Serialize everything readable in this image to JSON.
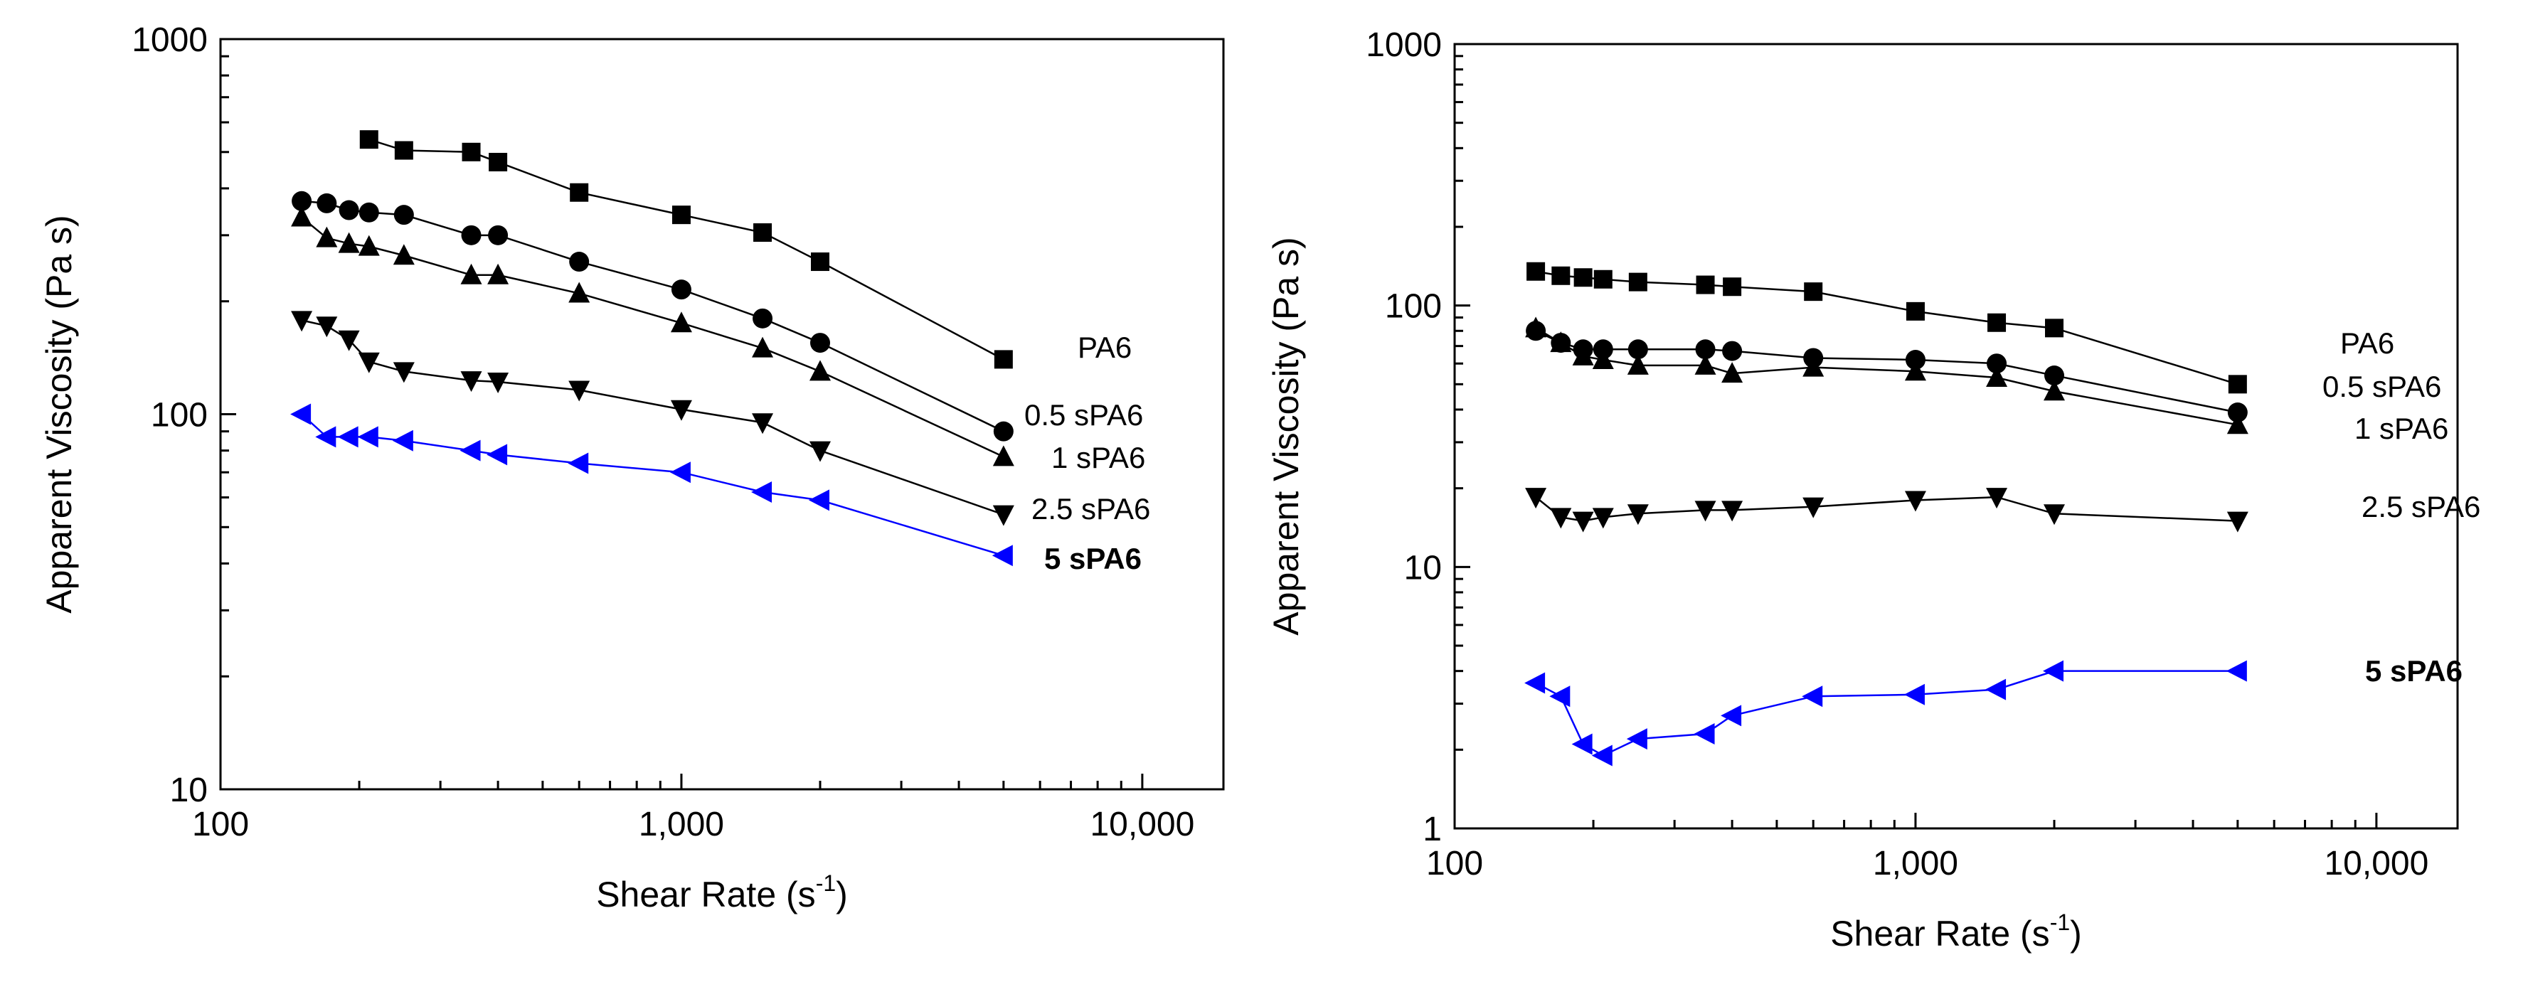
{
  "chart_data": [
    {
      "type": "line",
      "xscale": "log",
      "yscale": "log",
      "xlabel": "Shear Rate (s",
      "xlabel_sup": "-1",
      "xlabel_close": ")",
      "ylabel": "Apparent Viscosity (Pa s)",
      "xlim": [
        100,
        15000
      ],
      "ylim": [
        10,
        1000
      ],
      "x_ticks": [
        100,
        1000,
        10000
      ],
      "x_tick_labels": [
        "100",
        "1,000",
        "10,000"
      ],
      "y_ticks": [
        10,
        100,
        1000
      ],
      "y_tick_labels": [
        "10",
        "100",
        "1000"
      ],
      "series": [
        {
          "name": "PA6",
          "marker": "square",
          "color": "#000000",
          "x": [
            210,
            250,
            350,
            400,
            600,
            1000,
            1500,
            2000,
            5000
          ],
          "y": [
            540,
            505,
            500,
            470,
            390,
            340,
            305,
            255,
            140
          ]
        },
        {
          "name": "0.5 sPA6",
          "marker": "circle",
          "color": "#000000",
          "x": [
            150,
            170,
            190,
            210,
            250,
            350,
            400,
            600,
            1000,
            1500,
            2000,
            5000
          ],
          "y": [
            370,
            365,
            350,
            345,
            340,
            300,
            300,
            255,
            215,
            180,
            155,
            90
          ]
        },
        {
          "name": "1 sPA6",
          "marker": "triangle-up",
          "color": "#000000",
          "x": [
            150,
            170,
            190,
            210,
            250,
            350,
            400,
            600,
            1000,
            1500,
            2000,
            5000
          ],
          "y": [
            335,
            295,
            285,
            280,
            265,
            235,
            235,
            210,
            175,
            150,
            130,
            77
          ]
        },
        {
          "name": "2.5 sPA6",
          "marker": "triangle-down",
          "color": "#000000",
          "x": [
            150,
            170,
            190,
            210,
            250,
            350,
            400,
            600,
            1000,
            1500,
            2000,
            5000
          ],
          "y": [
            178,
            172,
            158,
            138,
            130,
            123,
            122,
            116,
            103,
            95,
            80,
            54
          ]
        },
        {
          "name": "5 sPA6",
          "marker": "triangle-left",
          "color": "#0000ff",
          "x": [
            150,
            170,
            190,
            210,
            250,
            350,
            400,
            600,
            1000,
            1500,
            2000,
            5000
          ],
          "y": [
            100,
            87,
            87,
            87,
            85,
            80,
            78,
            74,
            70,
            62,
            59,
            42
          ]
        }
      ]
    },
    {
      "type": "line",
      "xscale": "log",
      "yscale": "log",
      "xlabel": "Shear Rate (s",
      "xlabel_sup": "-1",
      "xlabel_close": ")",
      "ylabel": "Apparent Viscosity (Pa s)",
      "xlim": [
        100,
        15000
      ],
      "ylim": [
        1,
        1000
      ],
      "x_ticks": [
        100,
        1000,
        10000
      ],
      "x_tick_labels": [
        "100",
        "1,000",
        "10,000"
      ],
      "y_ticks": [
        1,
        10,
        100,
        1000
      ],
      "y_tick_labels": [
        "1",
        "10",
        "100",
        "1000"
      ],
      "series": [
        {
          "name": "PA6",
          "marker": "square",
          "color": "#000000",
          "x": [
            150,
            170,
            190,
            210,
            250,
            350,
            400,
            600,
            1000,
            1500,
            2000,
            5000
          ],
          "y": [
            135,
            130,
            128,
            126,
            123,
            120,
            118,
            113,
            95,
            86,
            82,
            50
          ]
        },
        {
          "name": "0.5 sPA6",
          "marker": "circle",
          "color": "#000000",
          "x": [
            150,
            170,
            190,
            210,
            250,
            350,
            400,
            600,
            1000,
            1500,
            2000,
            5000
          ],
          "y": [
            80,
            72,
            68,
            68,
            68,
            68,
            67,
            63,
            62,
            60,
            54,
            39
          ]
        },
        {
          "name": "1 sPA6",
          "marker": "triangle-up",
          "color": "#000000",
          "x": [
            150,
            170,
            190,
            210,
            250,
            350,
            400,
            600,
            1000,
            1500,
            2000,
            5000
          ],
          "y": [
            82,
            72,
            64,
            62,
            59,
            59,
            55,
            58,
            56,
            53,
            47,
            35
          ]
        },
        {
          "name": "2.5 sPA6",
          "marker": "triangle-down",
          "color": "#000000",
          "x": [
            150,
            170,
            190,
            210,
            250,
            350,
            400,
            600,
            1000,
            1500,
            2000,
            5000
          ],
          "y": [
            18.5,
            15.5,
            15,
            15.5,
            16,
            16.5,
            16.5,
            17,
            18,
            18.5,
            16,
            15
          ]
        },
        {
          "name": "5 sPA6",
          "marker": "triangle-left",
          "color": "#0000ff",
          "x": [
            150,
            170,
            190,
            210,
            250,
            350,
            400,
            600,
            1000,
            1500,
            2000,
            5000
          ],
          "y": [
            3.6,
            3.2,
            2.1,
            1.9,
            2.2,
            2.3,
            2.7,
            3.2,
            3.25,
            3.4,
            4,
            4
          ]
        }
      ]
    }
  ]
}
